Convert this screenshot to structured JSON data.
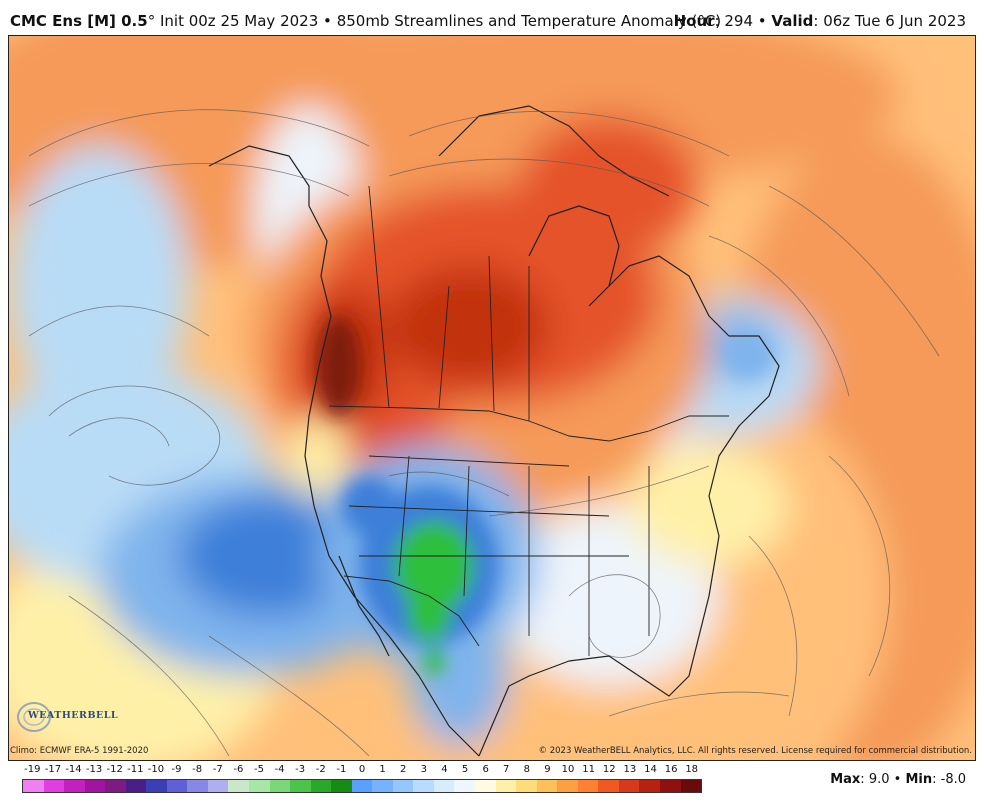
{
  "header": {
    "model": "CMC Ens [M] 0.5",
    "degree": "°",
    "init": "Init 00z 25 May 2023",
    "bullet": "•",
    "field": "850mb Streamlines and Temperature Anomaly (°C)",
    "hour_label": "Hour",
    "hour_value": "294",
    "valid_label": "Valid",
    "valid_value": "06z Tue 6 Jun 2023"
  },
  "footer": {
    "climo": "Climo: ECMWF ERA-5 1991-2020",
    "copyright": "© 2023 WeatherBELL Analytics, LLC. All rights reserved. License required for commercial distribution.",
    "logo_text": "WEATHERBELL",
    "max_label": "Max",
    "max_value": "9.0",
    "min_label": "Min",
    "min_value": "-8.0"
  },
  "scale": {
    "labels": [
      "-19",
      "-17",
      "-14",
      "-13",
      "-12",
      "-11",
      "-10",
      "-9",
      "-8",
      "-7",
      "-6",
      "-5",
      "-4",
      "-3",
      "-2",
      "-1",
      "0",
      "1",
      "2",
      "3",
      "4",
      "5",
      "6",
      "7",
      "8",
      "9",
      "10",
      "11",
      "12",
      "13",
      "14",
      "16",
      "18"
    ],
    "colors": [
      "#f07ff0",
      "#e23de3",
      "#c41fbf",
      "#a4139f",
      "#7e1a83",
      "#4a1d88",
      "#3a3fb8",
      "#5f5fd6",
      "#8787e6",
      "#aeaef0",
      "#c9e8c9",
      "#a6e6a6",
      "#7ad87a",
      "#4cc44c",
      "#2aa82a",
      "#158c15",
      "#5aa0ff",
      "#76b2ff",
      "#96c6ff",
      "#b8dcff",
      "#d6edff",
      "#eef7ff",
      "#fffbe0",
      "#fff0a8",
      "#ffdc7a",
      "#ffc05a",
      "#ffa040",
      "#ff8030",
      "#f05a20",
      "#d8391a",
      "#b82010",
      "#901010",
      "#6a0a0a"
    ]
  },
  "map": {
    "colors": {
      "ocean_cold": "#b9dcf6",
      "blue_mid": "#7fb4ec",
      "blue_deep": "#3d7fd9",
      "green": "#2fbf3d",
      "pale": "#eef4fb",
      "yellow": "#fff0a8",
      "orange_light": "#ffc07a",
      "orange": "#f59a58",
      "red": "#e5532a",
      "red_deep": "#c23211",
      "maroon": "#7e1a0c"
    }
  }
}
